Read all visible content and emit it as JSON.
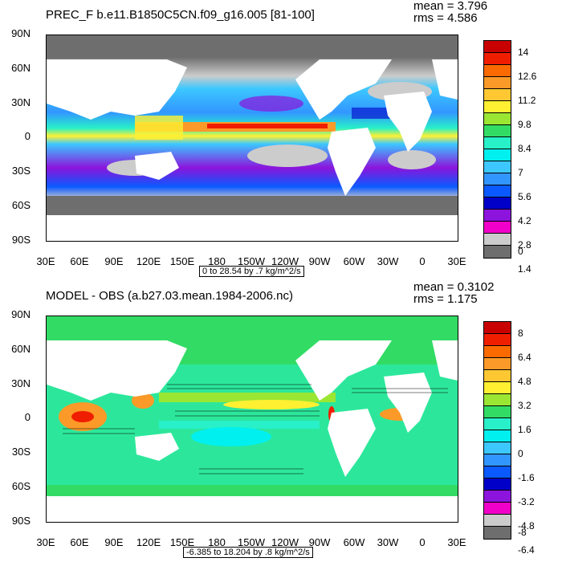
{
  "panels": [
    {
      "title": "PREC_F b.e11.B1850C5CN.f09_g16.005 [81-100]",
      "mean": "mean = 3.796",
      "rms": "rms = 4.586",
      "range_note": "0 to 28.54 by .7 kg/m^2/s",
      "lat_labels": [
        "90N",
        "60N",
        "30N",
        "0",
        "30S",
        "60S",
        "90S"
      ],
      "lon_labels": [
        "30E",
        "60E",
        "90E",
        "120E",
        "150E",
        "180",
        "150W",
        "120W",
        "90W",
        "60W",
        "30W",
        "0",
        "30E"
      ],
      "colorbar_labels": [
        "14",
        "12.6",
        "11.2",
        "9.8",
        "8.4",
        "7",
        "5.6",
        "4.2",
        "2.8",
        "1.4",
        "0"
      ],
      "colorbar_colors": [
        "#c80000",
        "#f01e00",
        "#fa6a00",
        "#fb9a28",
        "#ffc832",
        "#fff032",
        "#9ae632",
        "#32dc64",
        "#28f0c8",
        "#00f0f0",
        "#3cc8ff",
        "#3296ff",
        "#0a5aff",
        "#0000c8",
        "#8c14dc",
        "#f000c8",
        "#cccccc",
        "#6e6e6e"
      ]
    },
    {
      "title": "MODEL - OBS (a.b27.03.mean.1984-2006.nc)",
      "mean": "mean = 0.3102",
      "rms": "rms = 1.175",
      "range_note": "-6.385 to 18.204 by .8 kg/m^2/s",
      "lat_labels": [
        "90N",
        "60N",
        "30N",
        "0",
        "30S",
        "60S",
        "90S"
      ],
      "lon_labels": [
        "30E",
        "60E",
        "90E",
        "120E",
        "150E",
        "180",
        "150W",
        "120W",
        "90W",
        "60W",
        "30W",
        "0",
        "30E"
      ],
      "colorbar_labels": [
        "8",
        "6.4",
        "4.8",
        "3.2",
        "1.6",
        "0",
        "-1.6",
        "-3.2",
        "-4.8",
        "-6.4",
        "-8"
      ],
      "colorbar_colors": [
        "#c80000",
        "#f01e00",
        "#fa6a00",
        "#fb9a28",
        "#ffc832",
        "#fff032",
        "#9ae632",
        "#32dc64",
        "#28f0c8",
        "#00f0f0",
        "#3cc8ff",
        "#3296ff",
        "#0a5aff",
        "#0000c8",
        "#8c14dc",
        "#f000c8",
        "#cccccc",
        "#6e6e6e"
      ]
    }
  ]
}
